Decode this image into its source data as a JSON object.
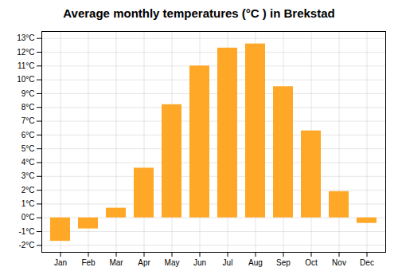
{
  "chart_data": {
    "type": "bar",
    "title": "Average monthly temperatures (°C ) in Brekstad",
    "categories": [
      "Jan",
      "Feb",
      "Mar",
      "Apr",
      "May",
      "Jun",
      "Jul",
      "Aug",
      "Sep",
      "Oct",
      "Nov",
      "Dec"
    ],
    "values": [
      -1.7,
      -0.8,
      0.7,
      3.6,
      8.2,
      11.0,
      12.3,
      12.6,
      9.5,
      6.3,
      1.9,
      -0.4
    ],
    "color": "#FFA726",
    "ylim": [
      -2.5,
      13.5
    ],
    "yticks": [
      {
        "value": -2,
        "label": "-2°C"
      },
      {
        "value": -1,
        "label": "-1°C"
      },
      {
        "value": 0,
        "label": "0°C"
      },
      {
        "value": 1,
        "label": "1°C"
      },
      {
        "value": 2,
        "label": "2°C"
      },
      {
        "value": 3,
        "label": "3°C"
      },
      {
        "value": 4,
        "label": "4°C"
      },
      {
        "value": 5,
        "label": "5°C"
      },
      {
        "value": 6,
        "label": "6°C"
      },
      {
        "value": 7,
        "label": "7°C"
      },
      {
        "value": 8,
        "label": "8°C"
      },
      {
        "value": 9,
        "label": "9°C"
      },
      {
        "value": 10,
        "label": "10°C"
      },
      {
        "value": 11,
        "label": "11°C"
      },
      {
        "value": 12,
        "label": "12°C"
      },
      {
        "value": 13,
        "label": "13°C"
      }
    ],
    "grid": true
  }
}
